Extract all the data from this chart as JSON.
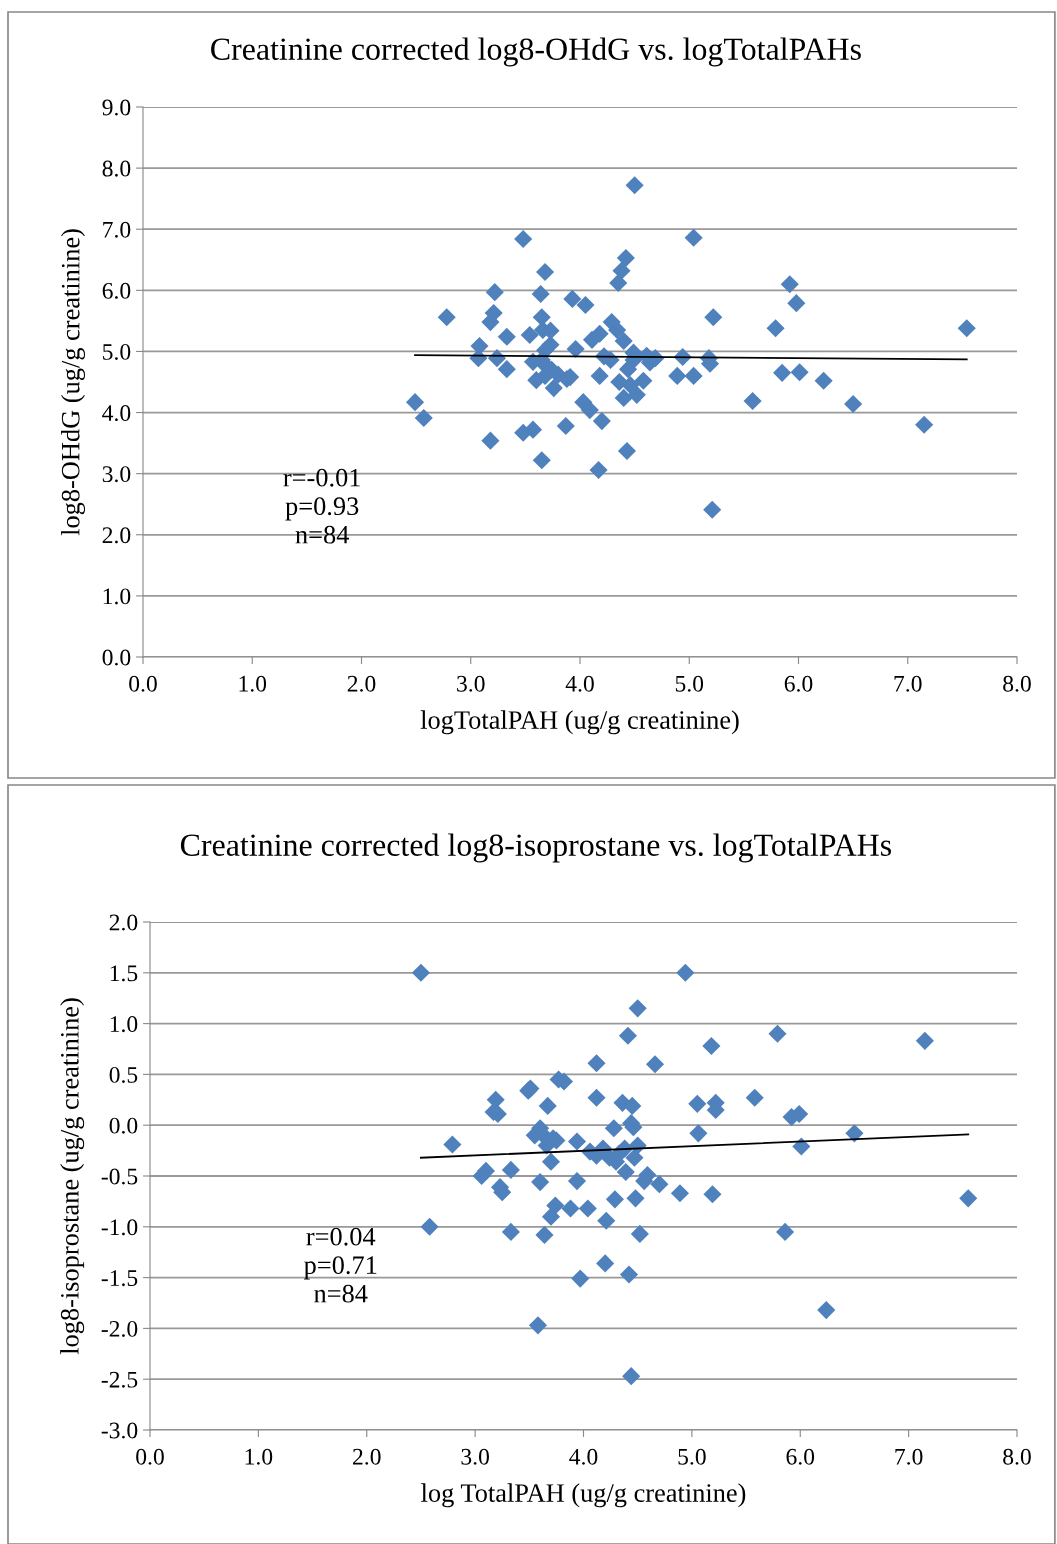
{
  "chart_data": [
    {
      "type": "scatter",
      "title": "Creatinine corrected log8-OHdG vs. logTotalPAHs",
      "xlabel": "logTotalPAH (ug/g creatinine)",
      "ylabel": "log8-OHdG (ug/g creatinine)",
      "xlim": [
        0,
        8
      ],
      "ylim": [
        0,
        9
      ],
      "xticks": [
        {
          "value": 0,
          "label": "0.0"
        },
        {
          "value": 1,
          "label": "1.0"
        },
        {
          "value": 2,
          "label": "2.0"
        },
        {
          "value": 3,
          "label": "3.0"
        },
        {
          "value": 4,
          "label": "4.0"
        },
        {
          "value": 5,
          "label": "5.0"
        },
        {
          "value": 6,
          "label": "6.0"
        },
        {
          "value": 7,
          "label": "7.0"
        },
        {
          "value": 8,
          "label": "8.0"
        }
      ],
      "yticks": [
        {
          "value": 0,
          "label": "0.0"
        },
        {
          "value": 1,
          "label": "1.0"
        },
        {
          "value": 2,
          "label": "2.0"
        },
        {
          "value": 3,
          "label": "3.0"
        },
        {
          "value": 4,
          "label": "4.0"
        },
        {
          "value": 5,
          "label": "5.0"
        },
        {
          "value": 6,
          "label": "6.0"
        },
        {
          "value": 7,
          "label": "7.0"
        },
        {
          "value": 8,
          "label": "8.0"
        },
        {
          "value": 9,
          "label": "9.0"
        }
      ],
      "grid": "y",
      "legend": false,
      "annotations": [
        "r=-0.01",
        "p=0.93",
        "n=84"
      ],
      "series": [
        {
          "color": "#4f81bd",
          "marker": "diamond",
          "x": [
            2.49,
            2.57,
            2.78,
            3.18,
            3.21,
            3.22,
            3.07,
            3.08,
            3.18,
            3.24,
            3.33,
            3.33,
            3.48,
            3.48,
            3.57,
            3.54,
            3.64,
            3.68,
            3.65,
            3.66,
            3.73,
            3.68,
            3.73,
            3.65,
            3.69,
            3.6,
            3.68,
            3.76,
            3.65,
            3.87,
            3.91,
            3.93,
            4.05,
            3.96,
            4.03,
            4.09,
            4.11,
            4.18,
            4.2,
            4.17,
            4.18,
            4.29,
            4.34,
            4.28,
            4.4,
            4.42,
            4.38,
            4.35,
            4.43,
            4.36,
            4.4,
            4.44,
            4.49,
            4.49,
            4.5,
            4.52,
            4.58,
            4.61,
            4.69,
            4.89,
            4.94,
            5.04,
            5.04,
            5.18,
            5.19,
            5.22,
            5.21,
            5.58,
            5.79,
            5.85,
            5.92,
            5.98,
            6.01,
            6.23,
            6.5,
            7.15,
            7.54,
            3.57,
            3.8,
            3.74,
            3.88,
            4.22,
            4.64,
            4.46
          ],
          "values": [
            4.17,
            3.91,
            5.56,
            5.48,
            5.63,
            5.97,
            4.89,
            5.09,
            3.54,
            4.89,
            5.24,
            4.71,
            6.84,
            3.67,
            3.72,
            5.27,
            5.94,
            6.3,
            5.56,
            5.35,
            5.34,
            5.02,
            5.11,
            4.86,
            4.76,
            4.53,
            4.6,
            4.4,
            3.22,
            3.78,
            4.58,
            5.86,
            5.76,
            5.04,
            4.17,
            4.04,
            5.19,
            5.29,
            3.86,
            3.06,
            4.6,
            5.48,
            5.35,
            4.86,
            5.17,
            6.53,
            6.32,
            6.12,
            3.37,
            4.5,
            4.24,
            4.71,
            4.86,
            4.98,
            7.72,
            4.29,
            4.52,
            4.93,
            4.89,
            4.6,
            4.91,
            4.6,
            6.86,
            4.89,
            4.8,
            5.56,
            2.41,
            4.19,
            5.38,
            4.65,
            6.1,
            5.79,
            4.66,
            4.52,
            4.14,
            3.8,
            5.38,
            4.83,
            4.62,
            4.7,
            4.55,
            4.92,
            4.82,
            4.45
          ]
        },
        {
          "type": "line",
          "color": "#000000",
          "x": [
            2.49,
            7.54
          ],
          "values": [
            4.94,
            4.87
          ]
        }
      ]
    },
    {
      "type": "scatter",
      "title": "Creatinine corrected log8-isoprostane vs. logTotalPAHs",
      "xlabel": "log TotalPAH (ug/g creatinine)",
      "ylabel": "log8-isoprostane (ug/g creatinine)",
      "xlim": [
        0,
        8
      ],
      "ylim": [
        -3,
        2
      ],
      "xticks": [
        {
          "value": 0,
          "label": "0.0"
        },
        {
          "value": 1,
          "label": "1.0"
        },
        {
          "value": 2,
          "label": "2.0"
        },
        {
          "value": 3,
          "label": "3.0"
        },
        {
          "value": 4,
          "label": "4.0"
        },
        {
          "value": 5,
          "label": "5.0"
        },
        {
          "value": 6,
          "label": "6.0"
        },
        {
          "value": 7,
          "label": "7.0"
        },
        {
          "value": 8,
          "label": "8.0"
        }
      ],
      "yticks": [
        {
          "value": -3,
          "label": "-3.0"
        },
        {
          "value": -2.5,
          "label": "-2.5"
        },
        {
          "value": -2,
          "label": "-2.0"
        },
        {
          "value": -1.5,
          "label": "-1.5"
        },
        {
          "value": -1,
          "label": "-1.0"
        },
        {
          "value": -0.5,
          "label": "-0.5"
        },
        {
          "value": 0,
          "label": "0.0"
        },
        {
          "value": 0.5,
          "label": "0.5"
        },
        {
          "value": 1,
          "label": "1.0"
        },
        {
          "value": 1.5,
          "label": "1.5"
        },
        {
          "value": 2,
          "label": "2.0"
        }
      ],
      "grid": "y",
      "legend": false,
      "annotations": [
        "r=0.04",
        "p=0.71",
        "n=84"
      ],
      "series": [
        {
          "color": "#4f81bd",
          "marker": "diamond",
          "x": [
            2.5,
            2.79,
            2.58,
            3.06,
            3.1,
            3.19,
            3.21,
            3.23,
            3.25,
            3.33,
            3.33,
            3.49,
            3.51,
            3.55,
            3.6,
            3.6,
            3.58,
            3.64,
            3.67,
            3.66,
            3.7,
            3.7,
            3.74,
            3.77,
            3.82,
            3.75,
            3.88,
            3.94,
            3.94,
            3.97,
            4.04,
            4.12,
            4.12,
            4.06,
            4.18,
            4.21,
            4.2,
            4.29,
            4.28,
            4.36,
            4.39,
            4.38,
            4.41,
            4.42,
            4.44,
            4.45,
            4.47,
            4.46,
            4.48,
            4.5,
            4.52,
            4.5,
            4.59,
            4.66,
            4.7,
            4.89,
            4.94,
            5.05,
            5.06,
            5.18,
            5.22,
            5.22,
            5.19,
            5.58,
            5.79,
            5.86,
            5.92,
            5.99,
            6.01,
            6.24,
            6.5,
            7.15,
            7.55,
            3.17,
            3.65,
            3.72,
            4.24,
            4.33,
            4.44,
            4.56,
            4.12,
            4.3
          ],
          "values": [
            1.5,
            -0.19,
            -1.0,
            -0.5,
            -0.45,
            0.25,
            0.11,
            -0.61,
            -0.66,
            -0.44,
            -1.05,
            0.34,
            0.36,
            -0.1,
            -0.03,
            -0.56,
            -1.97,
            -1.08,
            0.19,
            -0.2,
            -0.36,
            -0.9,
            -0.79,
            0.45,
            0.43,
            -0.15,
            -0.82,
            -0.16,
            -0.55,
            -1.51,
            -0.82,
            0.27,
            0.61,
            -0.26,
            -0.23,
            -0.94,
            -1.36,
            -0.73,
            -0.03,
            0.22,
            -0.46,
            -0.23,
            0.88,
            -1.47,
            -2.47,
            0.19,
            -0.32,
            -0.02,
            -0.72,
            1.15,
            -1.07,
            -0.2,
            -0.49,
            0.6,
            -0.58,
            -0.67,
            1.5,
            0.21,
            -0.08,
            0.78,
            0.22,
            0.15,
            -0.68,
            0.27,
            0.9,
            -1.05,
            0.08,
            0.11,
            -0.21,
            -1.82,
            -0.08,
            0.83,
            -0.72,
            0.13,
            -0.12,
            -0.13,
            -0.32,
            -0.28,
            0.02,
            -0.55,
            -0.3,
            -0.36
          ]
        },
        {
          "type": "line",
          "color": "#000000",
          "x": [
            2.5,
            7.55
          ],
          "values": [
            -0.32,
            -0.09
          ]
        }
      ]
    }
  ]
}
